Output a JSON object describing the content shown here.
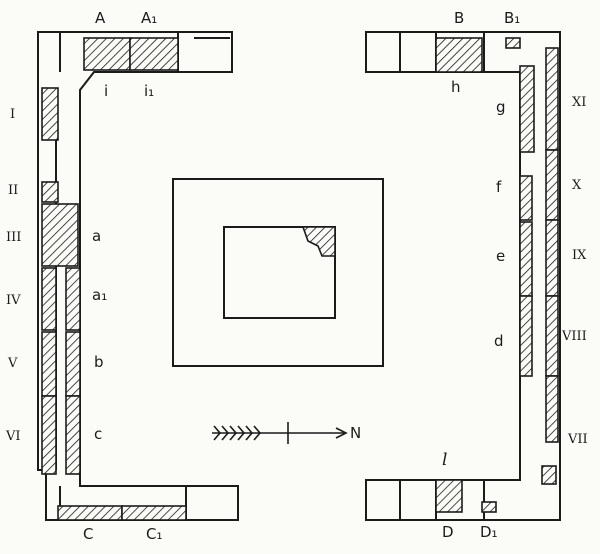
{
  "labels": {
    "top": {
      "A": "A",
      "A1": "A₁",
      "i": "i",
      "i1": "i₁",
      "B": "B",
      "B1": "B₁",
      "h": "h"
    },
    "bottom": {
      "C": "C",
      "C1": "C₁",
      "D": "D",
      "D1": "D₁",
      "l": "l"
    },
    "left_roman": [
      "I",
      "II",
      "III",
      "IV",
      "V",
      "VI"
    ],
    "left_letters": {
      "a": "a",
      "a1": "a₁",
      "b": "b",
      "c": "c"
    },
    "right_roman": [
      "XI",
      "X",
      "IX",
      "VIII",
      "VII"
    ],
    "right_letters": {
      "g": "g",
      "f": "f",
      "e": "e",
      "d": "d"
    },
    "north": "N"
  },
  "colors": {
    "ink": "#1b1b1b",
    "paper": "#fbfbf8"
  }
}
